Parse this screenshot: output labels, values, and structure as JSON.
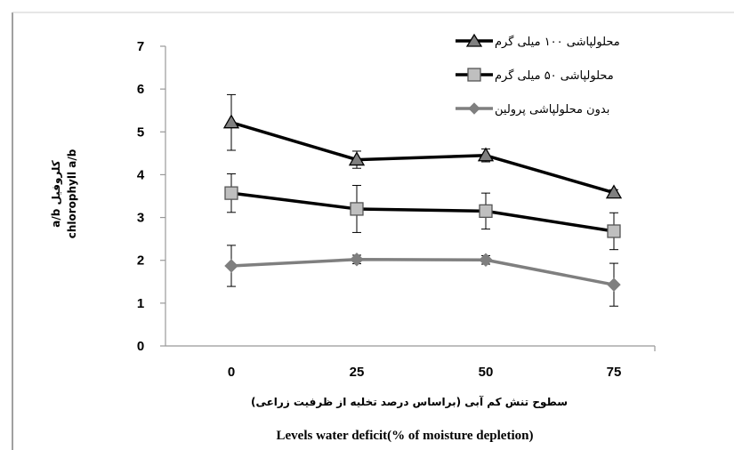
{
  "chart_data": {
    "type": "line",
    "categories": [
      "0",
      "25",
      "50",
      "75"
    ],
    "ylim": [
      0,
      7
    ],
    "yticks": [
      0,
      1,
      2,
      3,
      4,
      5,
      6,
      7
    ],
    "ylabel_lines": [
      "a/b کلروفیل",
      "chlorophyll a/b"
    ],
    "xlabel_lines": [
      "سطوح تنش کم آبی (براساس درصد تخلیه از ظرفیت زراعی)",
      "Levels water deficit(% of moisture depletion)"
    ],
    "grid": false,
    "legend_position": "top-right",
    "series": [
      {
        "name": "محلولپاشی ۱۰۰ میلی گرم",
        "marker": "triangle",
        "color": "#000000",
        "values": [
          5.22,
          4.35,
          4.45,
          3.58
        ],
        "errors": [
          0.65,
          0.2,
          0.15,
          0.07
        ]
      },
      {
        "name": "محلولپاشی ۵۰ میلی گرم",
        "marker": "square",
        "color": "#000000",
        "values": [
          3.57,
          3.2,
          3.15,
          2.68
        ],
        "errors": [
          0.45,
          0.55,
          0.42,
          0.43
        ]
      },
      {
        "name": "بدون محلولپاشی پرولین",
        "marker": "diamond",
        "color": "#7f7f7f",
        "values": [
          1.87,
          2.02,
          2.01,
          1.43
        ],
        "errors": [
          0.48,
          0.1,
          0.1,
          0.5
        ]
      }
    ]
  }
}
